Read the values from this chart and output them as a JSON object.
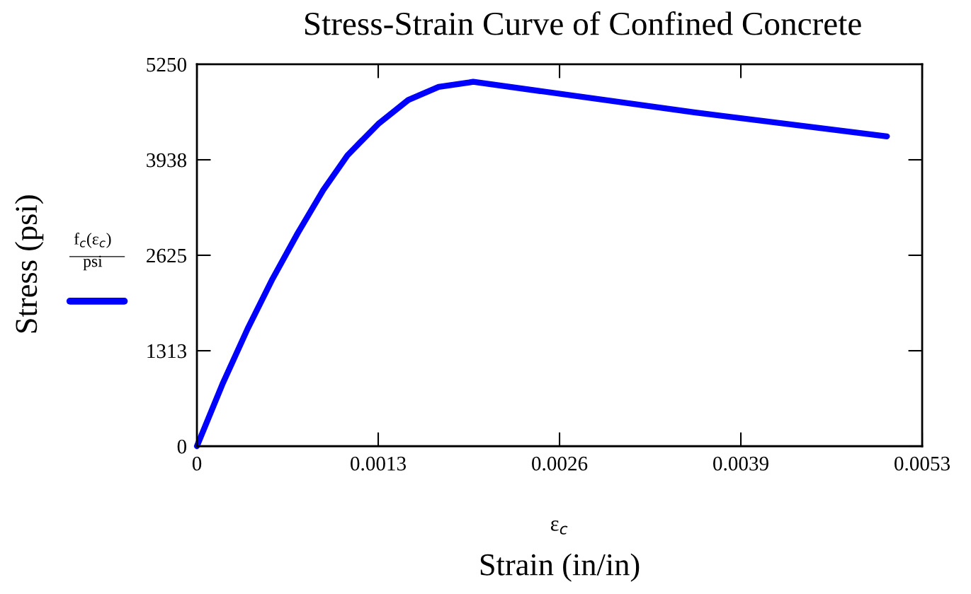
{
  "chart_data": {
    "type": "line",
    "title": "Stress-Strain Curve of Confined Concrete",
    "xlabel": "Strain (in/in)",
    "ylabel": "Stress (psi)",
    "annotations": [
      "ε$_{c}$"
    ],
    "x": [
      0,
      0.000184,
      0.000366,
      0.000547,
      0.00073,
      0.000914,
      0.00109,
      0.0013125,
      0.00153,
      0.00175,
      0.00197,
      0.002,
      0.0036,
      0.004995
    ],
    "series": [
      {
        "name": "f$_{c}$(ε$_{c}$)\npsi",
        "color": "#0000ff",
        "values": [
          0,
          850,
          1610,
          2300,
          2930,
          3520,
          4000,
          4430,
          4760,
          4940,
          5000,
          5010,
          4590,
          4260
        ]
      }
    ],
    "xlim": [
      0,
      0.00525
    ],
    "ylim": [
      0,
      5250
    ],
    "xticks": [
      0,
      {
        "value": 0.0013125,
        "label": "0.0013"
      },
      {
        "value": 0.002625,
        "label": "0.0026"
      },
      {
        "value": 0.0039375,
        "label": "0.0039"
      },
      {
        "value": 0.00525,
        "label": "0.0053"
      }
    ],
    "yticks": [
      0,
      {
        "value": 1312.5,
        "label": "1313"
      },
      2625,
      {
        "value": 3937.5,
        "label": "3938"
      },
      5250
    ],
    "grid": false,
    "legend": "left",
    "marker": "none",
    "line_style": "solid"
  }
}
